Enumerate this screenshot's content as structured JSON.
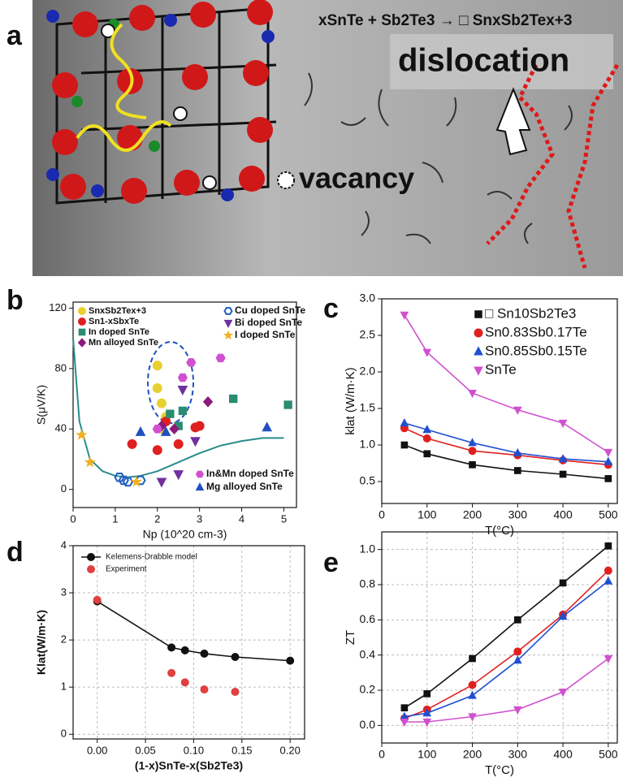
{
  "figure": {
    "panel_labels": [
      "a",
      "b",
      "c",
      "d",
      "e"
    ],
    "equation": "xSnTe + Sb2Te3 → □ SnxSb2Tex+3",
    "dislocation_label": "dislocation",
    "vacancy_label": "vacancy"
  },
  "chart_data": [
    {
      "type": "scatter",
      "xlabel": "Np (10^20 cm-3)",
      "ylabel": "S(μV/K)",
      "xlim": [
        0,
        5.3
      ],
      "ylim": [
        -12,
        124
      ],
      "xticks": [
        0,
        1,
        2,
        3,
        4,
        5
      ],
      "yticks": [
        0,
        40,
        80,
        120
      ],
      "grid": false,
      "curve": {
        "color": "#2a8c8c",
        "x": [
          0,
          0.15,
          0.4,
          0.7,
          1.0,
          1.3,
          1.6,
          2.0,
          2.5,
          3.0,
          3.5,
          4.0,
          4.5,
          5.0
        ],
        "values": [
          100,
          45,
          20,
          12,
          9,
          8,
          9,
          12,
          18,
          24,
          29,
          32,
          34,
          34
        ]
      },
      "series": [
        {
          "name": "SnxSb2Tex+3",
          "color": "#e8d030",
          "marker": "circle",
          "filled": true,
          "x": [
            2.0,
            2.0,
            2.1,
            2.2,
            2.1
          ],
          "values": [
            82,
            67,
            57,
            48,
            40
          ]
        },
        {
          "name": "Sn1-xSbxTe",
          "color": "#e02020",
          "marker": "circle",
          "filled": true,
          "x": [
            1.4,
            2.0,
            2.5,
            2.9,
            2.2,
            3.0
          ],
          "values": [
            30,
            26,
            30,
            41,
            45,
            42
          ]
        },
        {
          "name": "In doped SnTe",
          "color": "#2a8c70",
          "marker": "square",
          "filled": true,
          "x": [
            2.6,
            2.3,
            3.8,
            5.1,
            2.5
          ],
          "values": [
            52,
            50,
            60,
            56,
            42
          ]
        },
        {
          "name": "Mn alloyed SnTe",
          "color": "#8b1a7a",
          "marker": "diamond",
          "filled": true,
          "x": [
            2.1,
            3.2,
            2.4
          ],
          "values": [
            42,
            58,
            40
          ]
        },
        {
          "name": "Cu doped SnTe",
          "color": "#2060c0",
          "marker": "hexagon",
          "filled": false,
          "x": [
            1.1,
            1.2,
            1.3,
            1.6
          ],
          "values": [
            8,
            6,
            5,
            6
          ]
        },
        {
          "name": "Bi doped SnTe",
          "color": "#7030a0",
          "marker": "triangle-down",
          "filled": true,
          "x": [
            2.6,
            2.9,
            2.1,
            2.5
          ],
          "values": [
            66,
            32,
            5,
            10
          ]
        },
        {
          "name": "I doped SnTe",
          "color": "#f0b020",
          "marker": "star",
          "filled": true,
          "x": [
            0.2,
            0.4,
            1.5
          ],
          "values": [
            36,
            18,
            5
          ]
        },
        {
          "name": "In&Mn doped SnTe",
          "color": "#d050d0",
          "marker": "hexagon",
          "filled": true,
          "x": [
            2.8,
            3.5,
            2.6,
            2.0
          ],
          "values": [
            84,
            87,
            74,
            40
          ]
        },
        {
          "name": "Mg alloyed SnTe",
          "color": "#2050c0",
          "marker": "triangle",
          "filled": true,
          "x": [
            1.6,
            4.6,
            2.2
          ],
          "values": [
            38,
            41,
            38
          ]
        }
      ]
    },
    {
      "type": "line",
      "xlabel": "T(°C)",
      "ylabel": "klat (W/m·K)",
      "xlim": [
        0,
        520
      ],
      "ylim": [
        0.2,
        3.0
      ],
      "xticks": [
        0,
        100,
        200,
        300,
        400,
        500
      ],
      "yticks": [
        0.5,
        {
          "value": 1,
          "label": "1.0"
        },
        1.5,
        {
          "value": 2,
          "label": "2.0"
        },
        2.5,
        {
          "value": 3,
          "label": "3.0"
        }
      ],
      "grid": false,
      "x": [
        50,
        100,
        200,
        300,
        400,
        500
      ],
      "series": [
        {
          "name": "□ Sn10Sb2Te3",
          "color": "#111111",
          "marker": "square",
          "filled": true,
          "values": [
            1.0,
            0.88,
            0.73,
            0.65,
            0.6,
            0.54
          ]
        },
        {
          "name": "Sn0.83Sb0.17Te",
          "color": "#e02020",
          "marker": "circle",
          "filled": true,
          "values": [
            1.23,
            1.09,
            0.92,
            0.86,
            0.79,
            0.73
          ]
        },
        {
          "name": "Sn0.85Sb0.15Te",
          "color": "#2050d0",
          "marker": "triangle",
          "filled": true,
          "values": [
            1.3,
            1.21,
            1.03,
            0.89,
            0.81,
            0.77
          ]
        },
        {
          "name": "SnTe",
          "color": "#d050d0",
          "marker": "triangle-down",
          "filled": true,
          "values": [
            2.78,
            2.27,
            1.71,
            1.48,
            1.3,
            0.9
          ]
        }
      ]
    },
    {
      "type": "line",
      "xlabel": "(1-x)SnTe-x(Sb2Te3)",
      "ylabel": "Klat(W/m·K)",
      "xlim": [
        -0.025,
        0.215
      ],
      "ylim": [
        -0.1,
        4
      ],
      "xticks": [
        {
          "value": 0,
          "label": "0.00"
        },
        0.05,
        {
          "value": 0.1,
          "label": "0.10"
        },
        0.15,
        {
          "value": 0.2,
          "label": "0.20"
        }
      ],
      "yticks": [
        0,
        1,
        2,
        3,
        4
      ],
      "grid": true,
      "series": [
        {
          "name": "Kelemens-Drabble model",
          "color": "#111111",
          "marker": "circle",
          "filled": true,
          "line": true,
          "x": [
            0,
            0.077,
            0.091,
            0.111,
            0.143,
            0.2
          ],
          "values": [
            2.82,
            1.84,
            1.78,
            1.71,
            1.64,
            1.56
          ]
        },
        {
          "name": "Experiment",
          "color": "#e04040",
          "marker": "circle",
          "filled": true,
          "line": false,
          "x": [
            0,
            0.077,
            0.091,
            0.111,
            0.143
          ],
          "values": [
            2.85,
            1.3,
            1.1,
            0.95,
            0.9
          ]
        }
      ]
    },
    {
      "type": "line",
      "xlabel": "T(°C)",
      "ylabel": "ZT",
      "xlim": [
        0,
        520
      ],
      "ylim": [
        -0.1,
        1.1
      ],
      "xticks": [
        0,
        100,
        200,
        300,
        400,
        500
      ],
      "yticks": [
        {
          "value": 0,
          "label": "0.0"
        },
        0.2,
        0.4,
        0.6,
        0.8,
        {
          "value": 1,
          "label": "1.0"
        }
      ],
      "grid": true,
      "x": [
        50,
        100,
        200,
        300,
        400,
        500
      ],
      "series": [
        {
          "color": "#111111",
          "marker": "square",
          "filled": true,
          "values": [
            0.1,
            0.18,
            0.38,
            0.6,
            0.81,
            1.02
          ]
        },
        {
          "color": "#e02020",
          "marker": "circle",
          "filled": true,
          "values": [
            0.04,
            0.09,
            0.23,
            0.42,
            0.63,
            0.88
          ]
        },
        {
          "color": "#2050d0",
          "marker": "triangle",
          "filled": true,
          "values": [
            0.05,
            0.07,
            0.17,
            0.37,
            0.62,
            0.82
          ]
        },
        {
          "color": "#d050d0",
          "marker": "triangle-down",
          "filled": true,
          "values": [
            0.02,
            0.02,
            0.05,
            0.09,
            0.19,
            0.38
          ]
        }
      ]
    }
  ]
}
